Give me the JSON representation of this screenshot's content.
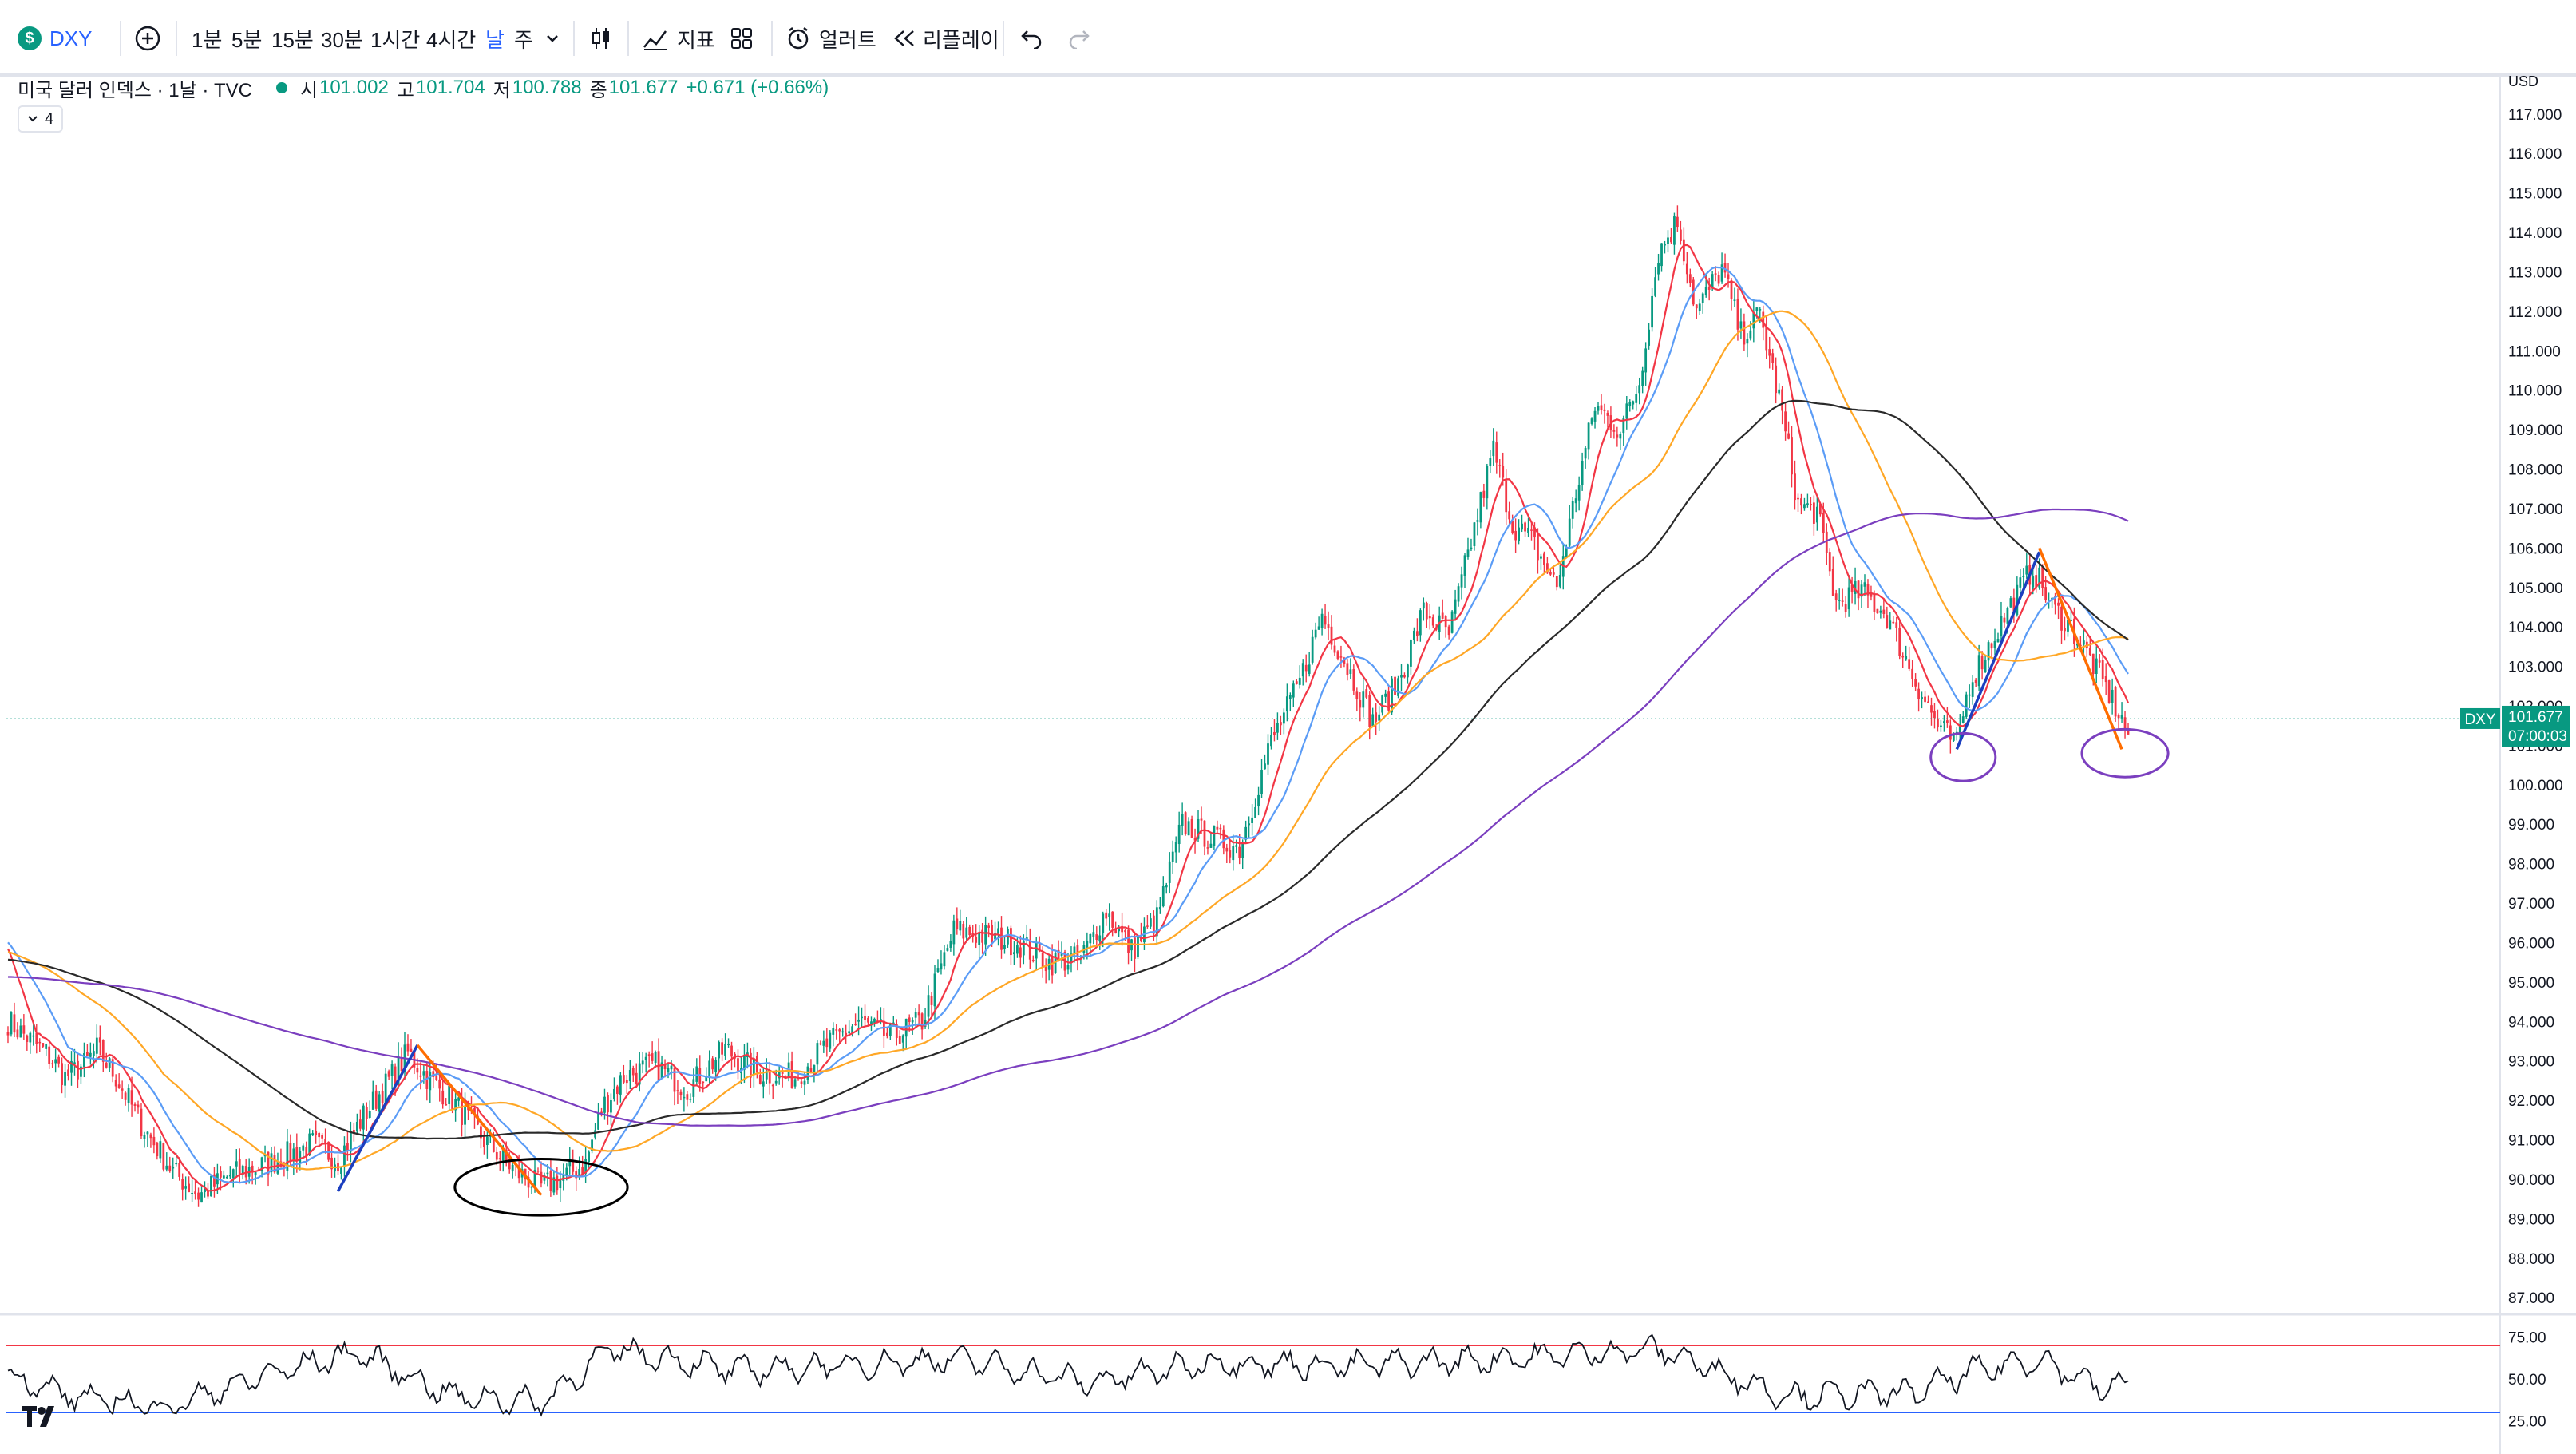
{
  "toolbar": {
    "symbol_icon": "dollar-circle-icon",
    "symbol_icon_glyph": "$",
    "symbol": "DXY",
    "add_icon": "plus-circle-icon",
    "timeframes": [
      "1분",
      "5분",
      "15분",
      "30분",
      "1시간",
      "4시간",
      "날",
      "주"
    ],
    "active_timeframe": "날",
    "chevron_icon": "chevron-down-icon",
    "candle_icon": "candlestick-icon",
    "indicators_label": "지표",
    "layout_icon": "grid-layout-icon",
    "alert_label": "얼러트",
    "replay_label": "리플레이",
    "undo_icon": "undo-icon",
    "redo_icon": "redo-icon"
  },
  "legend": {
    "title": "미국 달러 인덱스 · 1날 · TVC",
    "open_label": "시",
    "open": "101.002",
    "high_label": "고",
    "high": "101.704",
    "low_label": "저",
    "low": "100.788",
    "close_label": "종",
    "close": "101.677",
    "change": "+0.671 (+0.66%)",
    "indicator_count": "4"
  },
  "price_axis": {
    "currency": "USD",
    "last_symbol": "DXY",
    "last_price": "101.677",
    "countdown": "07:00:03"
  },
  "colors": {
    "up": "#089981",
    "down": "#f23645",
    "ma_fast": "#f23645",
    "ma_mid": "#5b9cf6",
    "ma_slow": "#ffa726",
    "ma_long": "#2a2a2a",
    "ma_longest": "#7b3fbf",
    "trend_up": "#1c3fbf",
    "trend_down": "#ff6d00"
  },
  "chart_data": [
    {
      "type": "candlestick",
      "symbol": "DXY",
      "yaxis_ticks": [
        "87.000",
        "88.000",
        "89.000",
        "90.000",
        "91.000",
        "92.000",
        "93.000",
        "94.000",
        "95.000",
        "96.000",
        "97.000",
        "98.000",
        "99.000",
        "100.000",
        "101.000",
        "102.000",
        "103.000",
        "104.000",
        "105.000",
        "106.000",
        "107.000",
        "108.000",
        "109.000",
        "110.000",
        "111.000",
        "112.000",
        "113.000",
        "114.000",
        "115.000",
        "116.000",
        "117.000"
      ],
      "ylim": [
        86.7,
        117.3
      ],
      "grid": false,
      "price_path": [
        [
          0,
          94.0
        ],
        [
          6,
          93.6
        ],
        [
          12,
          93.2
        ],
        [
          18,
          92.6
        ],
        [
          24,
          92.9
        ],
        [
          28,
          93.3
        ],
        [
          34,
          92.6
        ],
        [
          42,
          91.4
        ],
        [
          52,
          90.2
        ],
        [
          60,
          89.6
        ],
        [
          70,
          90.1
        ],
        [
          82,
          90.4
        ],
        [
          96,
          90.9
        ],
        [
          104,
          90.5
        ],
        [
          112,
          91.6
        ],
        [
          120,
          92.5
        ],
        [
          126,
          93.2
        ],
        [
          132,
          92.6
        ],
        [
          140,
          92.0
        ],
        [
          150,
          91.0
        ],
        [
          160,
          90.2
        ],
        [
          168,
          89.8
        ],
        [
          176,
          90.1
        ],
        [
          182,
          90.4
        ],
        [
          187,
          91.8
        ],
        [
          194,
          92.6
        ],
        [
          204,
          92.9
        ],
        [
          214,
          92.3
        ],
        [
          226,
          93.3
        ],
        [
          236,
          92.7
        ],
        [
          248,
          92.6
        ],
        [
          258,
          93.4
        ],
        [
          268,
          94.0
        ],
        [
          278,
          93.6
        ],
        [
          288,
          94.0
        ],
        [
          298,
          96.3
        ],
        [
          306,
          96.2
        ],
        [
          318,
          96.0
        ],
        [
          328,
          95.5
        ],
        [
          338,
          95.6
        ],
        [
          346,
          96.8
        ],
        [
          354,
          95.8
        ],
        [
          362,
          96.6
        ],
        [
          370,
          99.0
        ],
        [
          378,
          98.7
        ],
        [
          388,
          98.4
        ],
        [
          398,
          101.1
        ],
        [
          406,
          102.4
        ],
        [
          414,
          104.3
        ],
        [
          422,
          103.0
        ],
        [
          430,
          101.6
        ],
        [
          438,
          102.6
        ],
        [
          446,
          104.4
        ],
        [
          454,
          103.8
        ],
        [
          462,
          106.5
        ],
        [
          468,
          108.5
        ],
        [
          474,
          106.6
        ],
        [
          480,
          106.2
        ],
        [
          488,
          105.0
        ],
        [
          494,
          107.4
        ],
        [
          500,
          109.6
        ],
        [
          508,
          109.0
        ],
        [
          514,
          110.2
        ],
        [
          520,
          113.5
        ],
        [
          526,
          114.3
        ],
        [
          532,
          112.0
        ],
        [
          540,
          113.1
        ],
        [
          546,
          111.4
        ],
        [
          552,
          111.9
        ],
        [
          558,
          109.8
        ],
        [
          564,
          107.1
        ],
        [
          570,
          106.9
        ],
        [
          576,
          104.6
        ],
        [
          584,
          104.9
        ],
        [
          592,
          104.3
        ],
        [
          600,
          102.8
        ],
        [
          608,
          101.5
        ],
        [
          614,
          101.0
        ],
        [
          618,
          102.6
        ],
        [
          624,
          103.5
        ],
        [
          632,
          104.7
        ],
        [
          638,
          105.5
        ],
        [
          644,
          104.5
        ],
        [
          650,
          104.0
        ],
        [
          656,
          103.2
        ],
        [
          662,
          102.3
        ],
        [
          668,
          101.3
        ]
      ],
      "moving_averages": [
        {
          "color_key": "ma_fast",
          "period": 10
        },
        {
          "color_key": "ma_mid",
          "period": 20
        },
        {
          "color_key": "ma_slow",
          "period": 50
        },
        {
          "color_key": "ma_long",
          "period": 100
        },
        {
          "color_key": "ma_longest",
          "period": 200
        }
      ],
      "annotations": [
        {
          "type": "trendline",
          "color_key": "trend_up",
          "from": [
            104,
            89.7
          ],
          "to": [
            129,
            93.4
          ]
        },
        {
          "type": "trendline",
          "color_key": "trend_down",
          "from": [
            129,
            93.4
          ],
          "to": [
            168,
            89.6
          ]
        },
        {
          "type": "ellipse",
          "color": "#000000",
          "center": [
            168,
            89.8
          ],
          "rx_bars": 16,
          "ry_price": 0.65
        },
        {
          "type": "trendline",
          "color_key": "trend_up",
          "from": [
            614,
            100.9
          ],
          "to": [
            640,
            105.9
          ]
        },
        {
          "type": "trendline",
          "color_key": "trend_down",
          "from": [
            640,
            106.0
          ],
          "to": [
            666,
            100.9
          ]
        },
        {
          "type": "ellipse",
          "color": "#7b3fbf",
          "center": [
            616,
            100.7
          ],
          "rx_bars": 6,
          "ry_price": 0.55
        },
        {
          "type": "ellipse",
          "color": "#7b3fbf",
          "center": [
            667,
            100.8
          ],
          "rx_bars": 8,
          "ry_price": 0.55
        }
      ],
      "last_price": 101.677
    },
    {
      "type": "line",
      "name": "RSI",
      "yaxis_ticks": [
        "75.00",
        "50.00",
        "25.00"
      ],
      "ylim": [
        22,
        82
      ],
      "levels": [
        70,
        30
      ],
      "rsi_path": [
        [
          0,
          52
        ],
        [
          20,
          40
        ],
        [
          50,
          33
        ],
        [
          80,
          52
        ],
        [
          110,
          66
        ],
        [
          140,
          40
        ],
        [
          168,
          36
        ],
        [
          190,
          68
        ],
        [
          230,
          55
        ],
        [
          300,
          62
        ],
        [
          340,
          48
        ],
        [
          380,
          60
        ],
        [
          420,
          58
        ],
        [
          470,
          62
        ],
        [
          520,
          68
        ],
        [
          560,
          40
        ],
        [
          600,
          42
        ],
        [
          620,
          55
        ],
        [
          640,
          62
        ],
        [
          660,
          44
        ],
        [
          668,
          48
        ]
      ]
    }
  ]
}
